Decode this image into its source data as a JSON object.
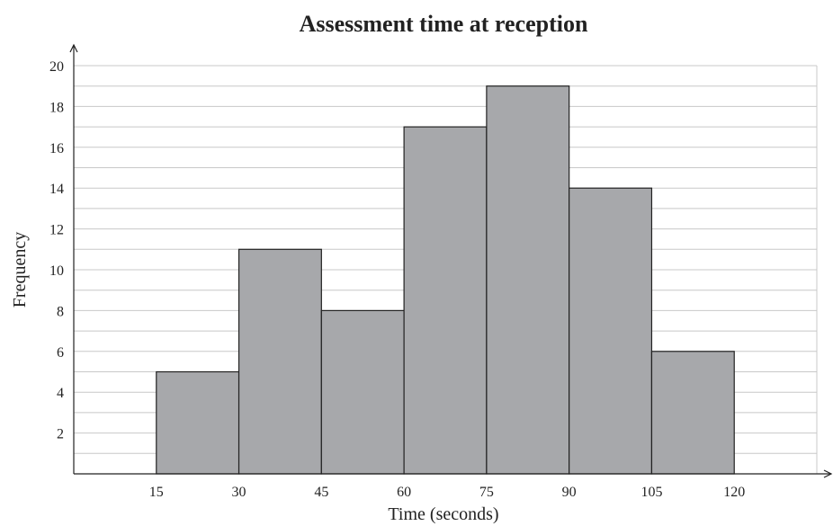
{
  "chart_data": {
    "type": "bar",
    "title": "Assessment time at reception",
    "xlabel": "Time (seconds)",
    "ylabel": "Frequency",
    "bins": [
      {
        "from": 15,
        "to": 30,
        "frequency": 5
      },
      {
        "from": 30,
        "to": 45,
        "frequency": 11
      },
      {
        "from": 45,
        "to": 60,
        "frequency": 8
      },
      {
        "from": 60,
        "to": 75,
        "frequency": 17
      },
      {
        "from": 75,
        "to": 90,
        "frequency": 19
      },
      {
        "from": 90,
        "to": 105,
        "frequency": 14
      },
      {
        "from": 105,
        "to": 120,
        "frequency": 6
      }
    ],
    "x_ticks": [
      15,
      30,
      45,
      60,
      75,
      90,
      105,
      120
    ],
    "y_ticks": [
      2,
      4,
      6,
      8,
      10,
      12,
      14,
      16,
      18,
      20
    ],
    "xlim": [
      0,
      135
    ],
    "ylim": [
      0,
      20
    ],
    "y_minor_step": 1,
    "grid": true,
    "legend": "none",
    "bar_color": "#a7a8ab",
    "grid_color": "#c8c8c8",
    "axis_color": "#222222"
  }
}
